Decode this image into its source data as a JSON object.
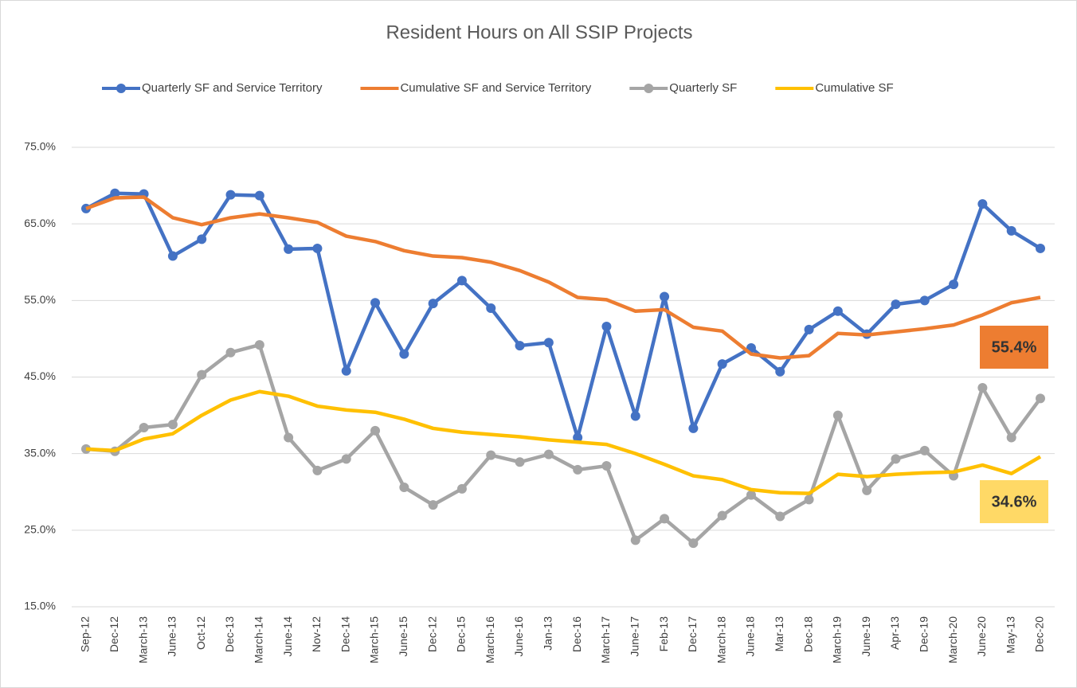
{
  "chart_data": {
    "type": "line",
    "title": "Resident Hours on All SSIP Projects",
    "categories": [
      "Sep-12",
      "Dec-12",
      "March-13",
      "June-13",
      "Oct-12",
      "Dec-13",
      "March-14",
      "June-14",
      "Nov-12",
      "Dec-14",
      "March-15",
      "June-15",
      "Dec-12",
      "Dec-15",
      "March-16",
      "June-16",
      "Jan-13",
      "Dec-16",
      "March-17",
      "June-17",
      "Feb-13",
      "Dec-17",
      "March-18",
      "June-18",
      "Mar-13",
      "Dec-18",
      "March-19",
      "June-19",
      "Apr-13",
      "Dec-19",
      "March-20",
      "June-20",
      "May-13",
      "Dec-20"
    ],
    "series": [
      {
        "name": "Quarterly SF and Service Territory",
        "color": "#4472c4",
        "marker": true,
        "values": [
          67.0,
          69.0,
          68.9,
          60.8,
          63.0,
          68.8,
          68.7,
          61.7,
          61.8,
          45.8,
          54.7,
          48.0,
          54.6,
          57.6,
          54.0,
          49.1,
          49.5,
          37.1,
          51.6,
          39.9,
          55.5,
          38.3,
          46.7,
          48.8,
          45.7,
          51.2,
          53.6,
          50.6,
          54.5,
          55.0,
          57.1,
          67.6,
          64.1,
          61.8
        ]
      },
      {
        "name": "Cumulative SF and Service Territory",
        "color": "#ed7d31",
        "marker": false,
        "values": [
          67.0,
          68.4,
          68.5,
          65.8,
          64.9,
          65.8,
          66.3,
          65.8,
          65.2,
          63.4,
          62.7,
          61.5,
          60.8,
          60.6,
          60.0,
          58.9,
          57.4,
          55.4,
          55.1,
          53.6,
          53.8,
          51.5,
          51.0,
          48.0,
          47.5,
          47.8,
          50.7,
          50.5,
          50.9,
          51.3,
          51.8,
          53.1,
          54.7,
          55.4
        ]
      },
      {
        "name": "Quarterly SF",
        "color": "#a5a5a5",
        "marker": true,
        "values": [
          35.6,
          35.3,
          38.4,
          38.8,
          45.3,
          48.2,
          49.2,
          37.1,
          32.8,
          34.3,
          38.0,
          30.6,
          28.3,
          30.4,
          34.8,
          33.9,
          34.9,
          32.9,
          33.4,
          23.7,
          26.5,
          23.3,
          26.9,
          29.6,
          26.8,
          29.0,
          40.0,
          30.2,
          34.3,
          35.4,
          32.1,
          43.6,
          37.1,
          42.2
        ]
      },
      {
        "name": "Cumulative SF",
        "color": "#ffc000",
        "marker": false,
        "values": [
          35.6,
          35.4,
          36.9,
          37.6,
          40.0,
          42.0,
          43.1,
          42.5,
          41.2,
          40.7,
          40.4,
          39.5,
          38.3,
          37.8,
          37.5,
          37.2,
          36.8,
          36.5,
          36.2,
          35.0,
          33.6,
          32.1,
          31.6,
          30.3,
          29.9,
          29.8,
          32.3,
          32.0,
          32.3,
          32.5,
          32.6,
          33.5,
          32.4,
          34.6
        ]
      }
    ],
    "ylim": [
      15,
      75
    ],
    "yticks": [
      {
        "value": 15,
        "label": "15.0%"
      },
      {
        "value": 25,
        "label": "25.0%"
      },
      {
        "value": 35,
        "label": "35.0%"
      },
      {
        "value": 45,
        "label": "45.0%"
      },
      {
        "value": 55,
        "label": "55.0%"
      },
      {
        "value": 65,
        "label": "65.0%"
      },
      {
        "value": 75,
        "label": "75.0%"
      }
    ],
    "grid": true,
    "legend": "top",
    "annotations": [
      {
        "text": "55.4%",
        "color": "#ed7d31"
      },
      {
        "text": "34.6%",
        "color": "#ffd966"
      }
    ]
  }
}
